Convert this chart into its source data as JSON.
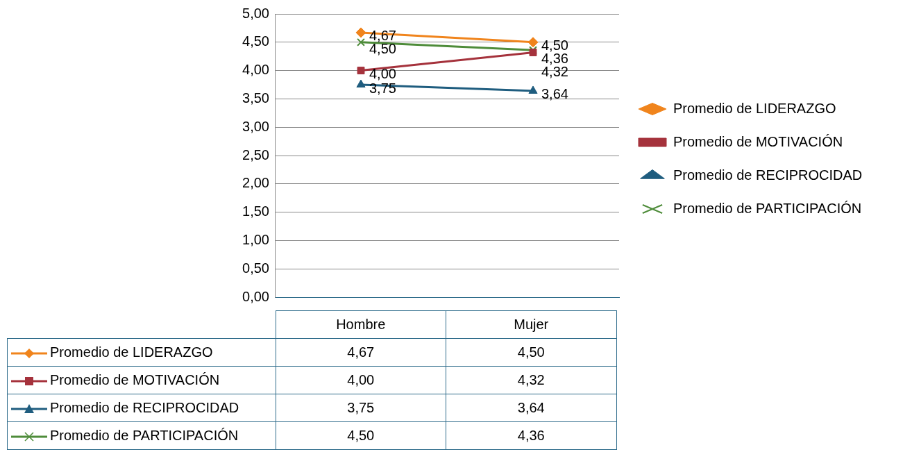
{
  "chart_data": {
    "type": "line",
    "categories": [
      "Hombre",
      "Mujer"
    ],
    "series": [
      {
        "name": "Promedio de LIDERAZGO",
        "color": "#f0841c",
        "marker": "diamond",
        "values": [
          4.67,
          4.5
        ],
        "value_labels": [
          "4,67",
          "4,50"
        ]
      },
      {
        "name": "Promedio de MOTIVACIÓN",
        "color": "#a5323c",
        "marker": "square",
        "values": [
          4.0,
          4.32
        ],
        "value_labels": [
          "4,00",
          "4,32"
        ]
      },
      {
        "name": "Promedio de RECIPROCIDAD",
        "color": "#1f5d7f",
        "marker": "triangle",
        "values": [
          3.75,
          3.64
        ],
        "value_labels": [
          "3,75",
          "3,64"
        ]
      },
      {
        "name": "Promedio de PARTICIPACIÓN",
        "color": "#4e8c3a",
        "marker": "cross",
        "values": [
          4.5,
          4.36
        ],
        "value_labels": [
          "4,50",
          "4,36"
        ]
      }
    ],
    "ylim": [
      0,
      5
    ],
    "yticks": [
      {
        "value": 0,
        "label": "0,00"
      },
      {
        "value": 0.5,
        "label": "0,50"
      },
      {
        "value": 1,
        "label": "1,00"
      },
      {
        "value": 1.5,
        "label": "1,50"
      },
      {
        "value": 2,
        "label": "2,00"
      },
      {
        "value": 2.5,
        "label": "2,50"
      },
      {
        "value": 3,
        "label": "3,00"
      },
      {
        "value": 3.5,
        "label": "3,50"
      },
      {
        "value": 4,
        "label": "4,00"
      },
      {
        "value": 4.5,
        "label": "4,50"
      },
      {
        "value": 5,
        "label": "5,00"
      }
    ],
    "grid": "y",
    "legend": "right",
    "line_style": "solid"
  }
}
